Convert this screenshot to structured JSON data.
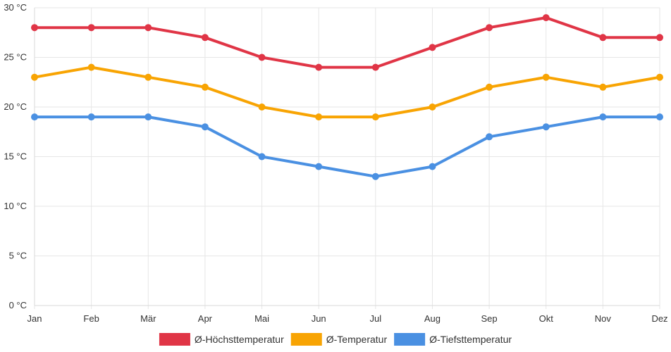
{
  "chart_data": {
    "type": "line",
    "title": "",
    "xlabel": "",
    "ylabel": "",
    "unit_suffix": " °C",
    "categories": [
      "Jan",
      "Feb",
      "Mär",
      "Apr",
      "Mai",
      "Jun",
      "Jul",
      "Aug",
      "Sep",
      "Okt",
      "Nov",
      "Dez"
    ],
    "ylim": [
      0,
      30
    ],
    "y_ticks": [
      0,
      5,
      10,
      15,
      20,
      25,
      30
    ],
    "y_tick_labels": [
      "0 °C",
      "5 °C",
      "10 °C",
      "15 °C",
      "20 °C",
      "25 °C",
      "30 °C"
    ],
    "grid": true,
    "legend_position": "bottom",
    "series": [
      {
        "name": "Ø-Höchsttemperatur",
        "color": "#e03546",
        "values": [
          28,
          28,
          28,
          27,
          25,
          24,
          24,
          26,
          28,
          29,
          27,
          27
        ]
      },
      {
        "name": "Ø-Temperatur",
        "color": "#f8a403",
        "values": [
          23,
          24,
          23,
          22,
          20,
          19,
          19,
          20,
          22,
          23,
          22,
          23
        ]
      },
      {
        "name": "Ø-Tiefsttemperatur",
        "color": "#4a90e2",
        "values": [
          19,
          19,
          19,
          18,
          15,
          14,
          13,
          14,
          17,
          18,
          19,
          19
        ]
      }
    ]
  }
}
